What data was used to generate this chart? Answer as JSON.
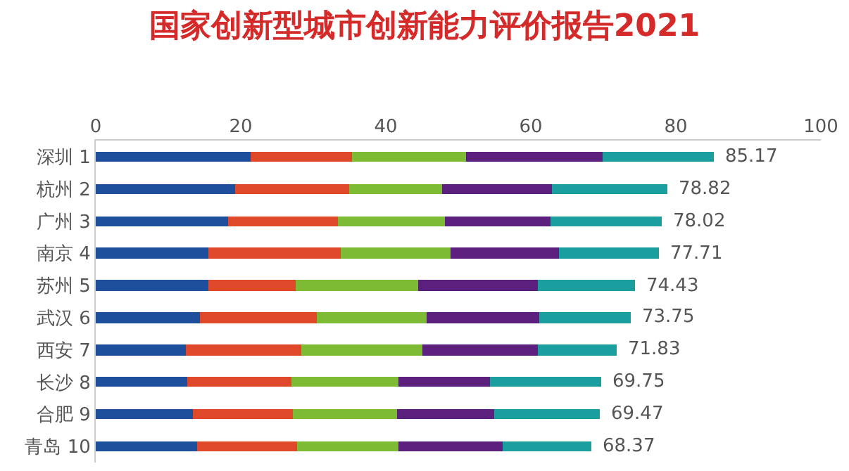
{
  "chart_data": {
    "type": "bar",
    "orientation": "horizontal",
    "stacked": true,
    "title": "国家创新型城市创新能力评价报告2021",
    "categories": [
      "深圳 1",
      "杭州 2",
      "广州 3",
      "南京 4",
      "苏州 5",
      "武汉 6",
      "西安 7",
      "长沙 8",
      "合肥 9",
      "青岛 10"
    ],
    "series": [
      {
        "color": "#1d4f9c",
        "values": [
          21.3,
          19.2,
          18.2,
          15.6,
          15.6,
          14.3,
          12.4,
          12.7,
          13.3,
          14.0
        ]
      },
      {
        "color": "#e0482a",
        "values": [
          14.0,
          15.8,
          15.1,
          18.2,
          12.0,
          16.2,
          15.9,
          14.3,
          13.8,
          13.7
        ]
      },
      {
        "color": "#7dbb35",
        "values": [
          15.7,
          12.8,
          14.9,
          15.1,
          16.9,
          15.2,
          16.8,
          14.7,
          14.5,
          14.1
        ]
      },
      {
        "color": "#5b1f7d",
        "values": [
          18.9,
          15.2,
          14.6,
          15.0,
          16.5,
          15.5,
          15.9,
          12.6,
          13.3,
          14.3
        ]
      },
      {
        "color": "#1a9e9e",
        "values": [
          15.27,
          15.82,
          15.22,
          13.81,
          13.43,
          12.55,
          10.83,
          15.45,
          14.57,
          12.27
        ]
      }
    ],
    "totals": [
      "85.17",
      "78.82",
      "78.02",
      "77.71",
      "74.43",
      "73.75",
      "71.83",
      "69.75",
      "69.47",
      "68.37"
    ],
    "xlim": [
      0,
      100
    ],
    "xticks": [
      0,
      20,
      40,
      60,
      80,
      100
    ],
    "grid": false
  }
}
